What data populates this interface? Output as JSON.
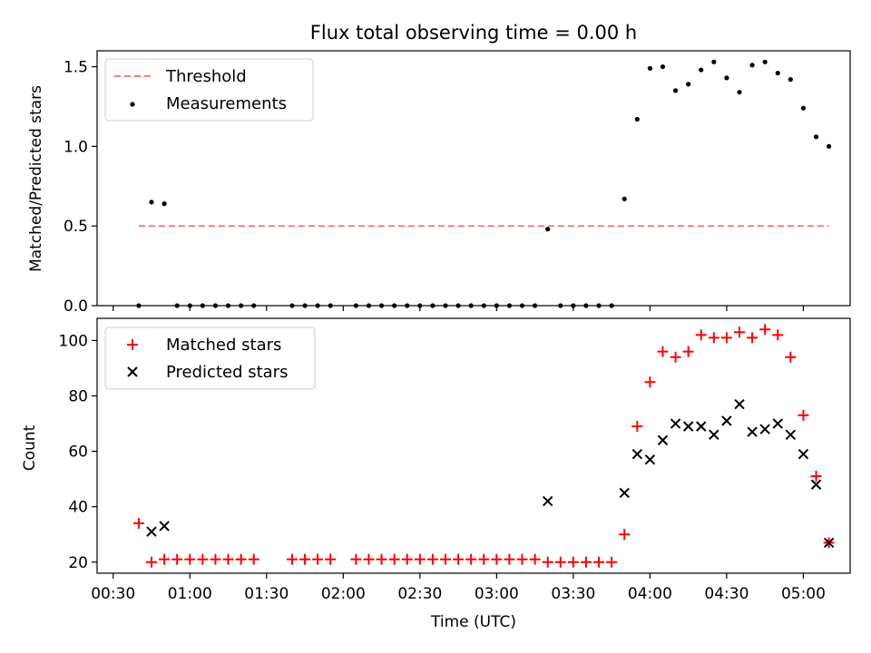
{
  "chart_data": [
    {
      "type": "scatter",
      "title": "Flux total observing time = 0.00 h",
      "xlabel": "",
      "ylabel": "Matched/Predicted stars",
      "ylim": [
        0,
        1.6
      ],
      "yticks": [
        "0.0",
        "0.5",
        "1.0",
        "1.5"
      ],
      "legend_position": "top-left",
      "threshold": {
        "name": "Threshold",
        "value": 0.5,
        "x_start": "00:40",
        "x_end": "05:10",
        "color": "#f08080"
      },
      "series": [
        {
          "name": "Measurements",
          "color": "#000000",
          "points": [
            [
              "00:40",
              0.0
            ],
            [
              "00:45",
              0.65
            ],
            [
              "00:50",
              0.64
            ],
            [
              "00:55",
              0.0
            ],
            [
              "01:00",
              0.0
            ],
            [
              "01:05",
              0.0
            ],
            [
              "01:10",
              0.0
            ],
            [
              "01:15",
              0.0
            ],
            [
              "01:20",
              0.0
            ],
            [
              "01:25",
              0.0
            ],
            [
              "01:40",
              0.0
            ],
            [
              "01:45",
              0.0
            ],
            [
              "01:50",
              0.0
            ],
            [
              "01:55",
              0.0
            ],
            [
              "02:05",
              0.0
            ],
            [
              "02:10",
              0.0
            ],
            [
              "02:15",
              0.0
            ],
            [
              "02:20",
              0.0
            ],
            [
              "02:25",
              0.0
            ],
            [
              "02:30",
              0.0
            ],
            [
              "02:35",
              0.0
            ],
            [
              "02:40",
              0.0
            ],
            [
              "02:45",
              0.0
            ],
            [
              "02:50",
              0.0
            ],
            [
              "02:55",
              0.0
            ],
            [
              "03:00",
              0.0
            ],
            [
              "03:05",
              0.0
            ],
            [
              "03:10",
              0.0
            ],
            [
              "03:15",
              0.0
            ],
            [
              "03:20",
              0.48
            ],
            [
              "03:25",
              0.0
            ],
            [
              "03:30",
              0.0
            ],
            [
              "03:35",
              0.0
            ],
            [
              "03:40",
              0.0
            ],
            [
              "03:45",
              0.0
            ],
            [
              "03:50",
              0.67
            ],
            [
              "03:55",
              1.17
            ],
            [
              "04:00",
              1.49
            ],
            [
              "04:05",
              1.5
            ],
            [
              "04:10",
              1.35
            ],
            [
              "04:15",
              1.39
            ],
            [
              "04:20",
              1.48
            ],
            [
              "04:25",
              1.53
            ],
            [
              "04:30",
              1.43
            ],
            [
              "04:35",
              1.34
            ],
            [
              "04:40",
              1.51
            ],
            [
              "04:45",
              1.53
            ],
            [
              "04:50",
              1.46
            ],
            [
              "04:55",
              1.42
            ],
            [
              "05:00",
              1.24
            ],
            [
              "05:05",
              1.06
            ],
            [
              "05:10",
              1.0
            ]
          ]
        }
      ]
    },
    {
      "type": "scatter",
      "title": "",
      "xlabel": "Time (UTC)",
      "ylabel": "Count",
      "ylim": [
        16,
        108
      ],
      "yticks": [
        "20",
        "40",
        "60",
        "80",
        "100"
      ],
      "xticks": [
        "00:30",
        "01:00",
        "01:30",
        "02:00",
        "02:30",
        "03:00",
        "03:30",
        "04:00",
        "04:30",
        "05:00"
      ],
      "legend_position": "top-left",
      "series": [
        {
          "name": "Matched stars",
          "marker": "plus",
          "color": "#ff0000",
          "points": [
            [
              "00:40",
              34
            ],
            [
              "00:45",
              20
            ],
            [
              "00:50",
              21
            ],
            [
              "00:55",
              21
            ],
            [
              "01:00",
              21
            ],
            [
              "01:05",
              21
            ],
            [
              "01:10",
              21
            ],
            [
              "01:15",
              21
            ],
            [
              "01:20",
              21
            ],
            [
              "01:25",
              21
            ],
            [
              "01:40",
              21
            ],
            [
              "01:45",
              21
            ],
            [
              "01:50",
              21
            ],
            [
              "01:55",
              21
            ],
            [
              "02:05",
              21
            ],
            [
              "02:10",
              21
            ],
            [
              "02:15",
              21
            ],
            [
              "02:20",
              21
            ],
            [
              "02:25",
              21
            ],
            [
              "02:30",
              21
            ],
            [
              "02:35",
              21
            ],
            [
              "02:40",
              21
            ],
            [
              "02:45",
              21
            ],
            [
              "02:50",
              21
            ],
            [
              "02:55",
              21
            ],
            [
              "03:00",
              21
            ],
            [
              "03:05",
              21
            ],
            [
              "03:10",
              21
            ],
            [
              "03:15",
              21
            ],
            [
              "03:20",
              20
            ],
            [
              "03:25",
              20
            ],
            [
              "03:30",
              20
            ],
            [
              "03:35",
              20
            ],
            [
              "03:40",
              20
            ],
            [
              "03:45",
              20
            ],
            [
              "03:50",
              30
            ],
            [
              "03:55",
              69
            ],
            [
              "04:00",
              85
            ],
            [
              "04:05",
              96
            ],
            [
              "04:10",
              94
            ],
            [
              "04:15",
              96
            ],
            [
              "04:20",
              102
            ],
            [
              "04:25",
              101
            ],
            [
              "04:30",
              101
            ],
            [
              "04:35",
              103
            ],
            [
              "04:40",
              101
            ],
            [
              "04:45",
              104
            ],
            [
              "04:50",
              102
            ],
            [
              "04:55",
              94
            ],
            [
              "05:00",
              73
            ],
            [
              "05:05",
              51
            ],
            [
              "05:10",
              27
            ]
          ]
        },
        {
          "name": "Predicted stars",
          "marker": "x",
          "color": "#000000",
          "points": [
            [
              "00:45",
              31
            ],
            [
              "00:50",
              33
            ],
            [
              "03:20",
              42
            ],
            [
              "03:50",
              45
            ],
            [
              "03:55",
              59
            ],
            [
              "04:00",
              57
            ],
            [
              "04:05",
              64
            ],
            [
              "04:10",
              70
            ],
            [
              "04:15",
              69
            ],
            [
              "04:20",
              69
            ],
            [
              "04:25",
              66
            ],
            [
              "04:30",
              71
            ],
            [
              "04:35",
              77
            ],
            [
              "04:40",
              67
            ],
            [
              "04:45",
              68
            ],
            [
              "04:50",
              70
            ],
            [
              "04:55",
              66
            ],
            [
              "05:00",
              59
            ],
            [
              "05:05",
              48
            ],
            [
              "05:10",
              27
            ]
          ]
        }
      ]
    }
  ]
}
